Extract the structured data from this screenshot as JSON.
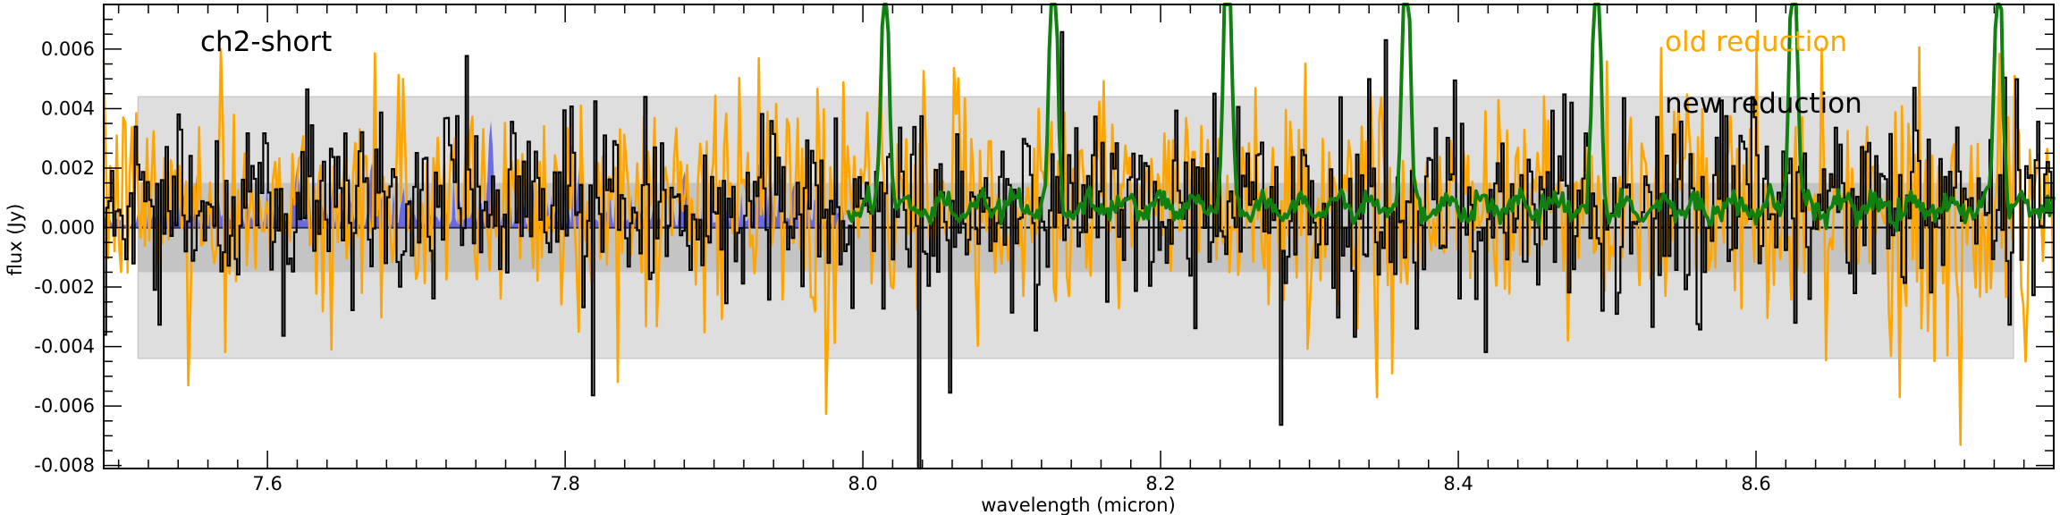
{
  "chart_data": {
    "type": "line",
    "title": "ch2-short",
    "xlabel": "wavelength (micron)",
    "ylabel": "flux (Jy)",
    "xlim": [
      7.49,
      8.8
    ],
    "ylim": [
      -0.0081,
      0.0075
    ],
    "x_ticks": [
      7.6,
      7.8,
      8.0,
      8.2,
      8.4,
      8.6
    ],
    "x_tick_labels": [
      "7.6",
      "7.8",
      "8.0",
      "8.2",
      "8.4",
      "8.6"
    ],
    "y_ticks": [
      -0.008,
      -0.006,
      -0.004,
      -0.002,
      0.0,
      0.002,
      0.004,
      0.006
    ],
    "y_tick_labels": [
      "-0.008",
      "-0.006",
      "-0.004",
      "-0.002",
      "0.000",
      "0.002",
      "0.004",
      "0.006"
    ],
    "grid": false,
    "legend_position": "top-right",
    "legend": [
      {
        "label": "old reduction",
        "color": "#ffa500"
      },
      {
        "label": "new reduction",
        "color": "#000000"
      }
    ],
    "bands": [
      {
        "name": "light-gray band",
        "x_range": [
          7.513,
          8.773
        ],
        "y_range": [
          -0.0044,
          0.0044
        ],
        "color": "#dedede"
      },
      {
        "name": "dark-gray band",
        "x_range": [
          7.513,
          8.773
        ],
        "y_range": [
          -0.0015,
          0.0015
        ],
        "color": "#c4c4c4"
      }
    ],
    "zero_line": {
      "y": 0.0,
      "color": "#000000"
    },
    "series": [
      {
        "name": "old reduction",
        "color": "#ffa500",
        "style": "line",
        "x_range": [
          7.49,
          8.8
        ],
        "mean": 0.0009,
        "sigma": 0.0019,
        "notable_points": [
          [
            7.643,
            -0.0041
          ],
          [
            8.346,
            -0.0057
          ],
          [
            8.356,
            -0.0049
          ],
          [
            8.738,
            -0.0073
          ],
          [
            8.728,
            -0.0043
          ],
          [
            8.781,
            -0.0045
          ],
          [
            7.81,
            0.0041
          ],
          [
            8.545,
            0.0039
          ]
        ]
      },
      {
        "name": "new reduction",
        "color": "#000000",
        "style": "step",
        "x_range": [
          7.49,
          8.8
        ],
        "mean": 0.0008,
        "sigma": 0.0017,
        "notable_points": [
          [
            8.037,
            -0.0081
          ],
          [
            8.35,
            0.0063
          ],
          [
            8.626,
            -0.0032
          ],
          [
            8.412,
            -0.0024
          ],
          [
            8.505,
            -0.0029
          ],
          [
            8.705,
            0.0047
          ]
        ]
      },
      {
        "name": "filled spectrum",
        "color": "#5b5be0",
        "style": "fill",
        "x_range": [
          7.49,
          7.99
        ],
        "peaks": [
          [
            7.62,
            0.0021
          ],
          [
            7.67,
            0.0022
          ],
          [
            7.75,
            0.0036
          ],
          [
            7.81,
            0.0022
          ],
          [
            7.88,
            0.0019
          ],
          [
            7.93,
            0.0022
          ]
        ]
      },
      {
        "name": "line model",
        "color": "#108010",
        "style": "line",
        "x_range": [
          7.99,
          8.8
        ],
        "baseline": 0.0007,
        "peaks": [
          [
            8.015,
            0.0064
          ],
          [
            8.128,
            0.0075
          ],
          [
            8.245,
            0.0075
          ],
          [
            8.365,
            0.0075
          ],
          [
            8.493,
            0.0075
          ],
          [
            8.625,
            0.0075
          ],
          [
            8.763,
            0.0071
          ]
        ]
      }
    ]
  }
}
